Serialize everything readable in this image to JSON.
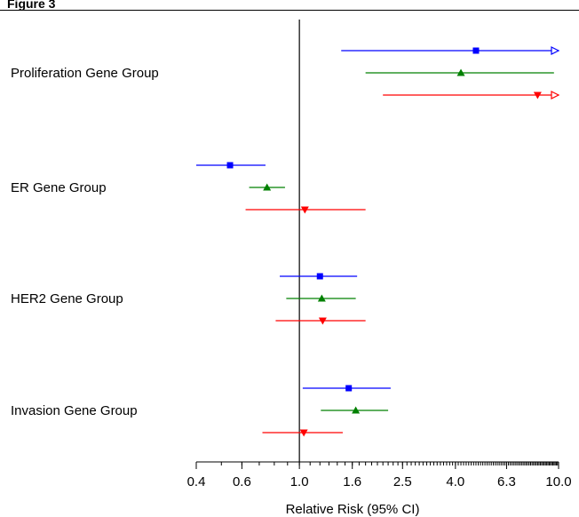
{
  "header": {
    "partial_title": "Figure 3"
  },
  "chart_data": {
    "type": "forest",
    "xlabel": "Relative Risk (95% CI)",
    "xscale": "log",
    "xlim": [
      0.4,
      10.0
    ],
    "reference_line": 1.0,
    "tick_labels": [
      "0.4",
      "0.6",
      "1.0",
      "1.6",
      "2.5",
      "4.0",
      "6.3",
      "10.0"
    ],
    "tick_values": [
      0.4,
      0.6,
      1.0,
      1.6,
      2.5,
      4.0,
      6.3,
      10.0
    ],
    "series_styles": [
      {
        "color": "#0000ff",
        "marker": "square"
      },
      {
        "color": "#008000",
        "marker": "triangle-up"
      },
      {
        "color": "#ff0000",
        "marker": "triangle-down"
      }
    ],
    "groups": [
      {
        "label": "Proliferation Gene Group",
        "estimates": [
          {
            "est": 4.8,
            "lo": 1.45,
            "hi": 10.0,
            "hi_arrow": true
          },
          {
            "est": 4.2,
            "lo": 1.8,
            "hi": 9.6
          },
          {
            "est": 8.3,
            "lo": 2.1,
            "hi": 10.0,
            "hi_arrow": true
          }
        ]
      },
      {
        "label": "ER Gene Group",
        "estimates": [
          {
            "est": 0.54,
            "lo": 0.4,
            "hi": 0.74
          },
          {
            "est": 0.75,
            "lo": 0.64,
            "hi": 0.88
          },
          {
            "est": 1.05,
            "lo": 0.62,
            "hi": 1.8
          }
        ]
      },
      {
        "label": "HER2 Gene Group",
        "estimates": [
          {
            "est": 1.2,
            "lo": 0.84,
            "hi": 1.67
          },
          {
            "est": 1.22,
            "lo": 0.89,
            "hi": 1.65
          },
          {
            "est": 1.23,
            "lo": 0.81,
            "hi": 1.8
          }
        ]
      },
      {
        "label": "Invasion Gene Group",
        "estimates": [
          {
            "est": 1.55,
            "lo": 1.03,
            "hi": 2.25
          },
          {
            "est": 1.65,
            "lo": 1.21,
            "hi": 2.2
          },
          {
            "est": 1.04,
            "lo": 0.72,
            "hi": 1.47
          }
        ]
      }
    ]
  }
}
